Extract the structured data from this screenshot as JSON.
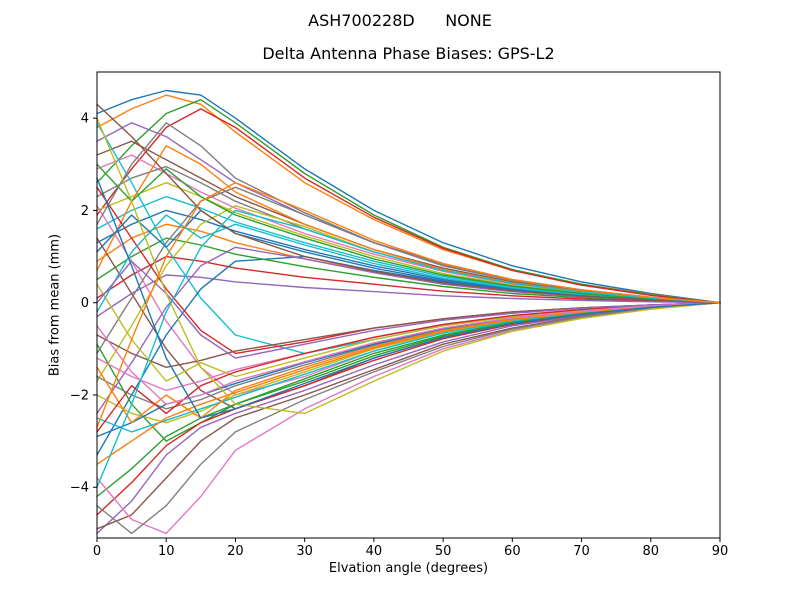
{
  "page": {
    "background": "#ffffff"
  },
  "chart_data": {
    "type": "line",
    "suptitle": "ASH700228D      NONE",
    "title": "Delta Antenna Phase Biases: GPS-L2",
    "xlabel": "Elvation angle (degrees)",
    "ylabel": "Bias from mean (mm)",
    "xlim": [
      0,
      90
    ],
    "ylim": [
      -5.1,
      5.0
    ],
    "xticks": [
      0,
      10,
      20,
      30,
      40,
      50,
      60,
      70,
      80,
      90
    ],
    "xticklabels": [
      "0",
      "10",
      "20",
      "30",
      "40",
      "50",
      "60",
      "70",
      "80",
      "90"
    ],
    "yticks": [
      -4,
      -2,
      0,
      2,
      4
    ],
    "yticklabels": [
      "−4",
      "−2",
      "0",
      "2",
      "4"
    ],
    "grid": false,
    "legend": false,
    "palette": [
      "#1f77b4",
      "#ff7f0e",
      "#2ca02c",
      "#d62728",
      "#9467bd",
      "#8c564b",
      "#e377c2",
      "#7f7f7f",
      "#bcbd22",
      "#17becf"
    ],
    "x": [
      0,
      5,
      10,
      15,
      20,
      30,
      40,
      50,
      60,
      70,
      80,
      90
    ],
    "series": [
      {
        "values": [
          4.1,
          4.4,
          4.6,
          4.5,
          4.0,
          2.9,
          2.0,
          1.3,
          0.8,
          0.45,
          0.2,
          0
        ]
      },
      {
        "values": [
          3.8,
          4.2,
          4.5,
          4.3,
          3.7,
          2.6,
          1.8,
          1.15,
          0.7,
          0.4,
          0.18,
          0
        ]
      },
      {
        "values": [
          2.6,
          3.4,
          4.1,
          4.4,
          3.9,
          2.8,
          1.9,
          1.2,
          0.72,
          0.4,
          0.17,
          0
        ]
      },
      {
        "values": [
          1.9,
          2.9,
          3.8,
          4.2,
          3.8,
          2.7,
          1.85,
          1.18,
          0.7,
          0.38,
          0.16,
          0
        ]
      },
      {
        "values": [
          3.5,
          3.9,
          3.6,
          3.1,
          2.6,
          1.9,
          1.3,
          0.85,
          0.5,
          0.28,
          0.12,
          0
        ]
      },
      {
        "values": [
          3.2,
          3.5,
          3.1,
          2.7,
          2.3,
          1.7,
          1.15,
          0.75,
          0.45,
          0.25,
          0.1,
          0
        ]
      },
      {
        "values": [
          2.9,
          3.2,
          2.8,
          2.4,
          2.05,
          1.5,
          1.05,
          0.68,
          0.4,
          0.22,
          0.1,
          0
        ]
      },
      {
        "values": [
          2.3,
          2.7,
          2.95,
          2.6,
          2.2,
          1.6,
          1.1,
          0.7,
          0.42,
          0.23,
          0.1,
          0
        ]
      },
      {
        "values": [
          2.0,
          2.3,
          2.6,
          2.3,
          1.95,
          1.45,
          1.0,
          0.63,
          0.38,
          0.2,
          0.09,
          0
        ]
      },
      {
        "values": [
          1.6,
          2.0,
          2.3,
          2.05,
          1.75,
          1.3,
          0.9,
          0.57,
          0.34,
          0.18,
          0.08,
          0
        ]
      },
      {
        "values": [
          1.3,
          1.7,
          2.0,
          1.8,
          1.55,
          1.15,
          0.8,
          0.5,
          0.3,
          0.16,
          0.07,
          0
        ]
      },
      {
        "values": [
          0.9,
          1.4,
          1.7,
          1.55,
          1.3,
          0.95,
          0.67,
          0.42,
          0.25,
          0.13,
          0.06,
          0
        ]
      },
      {
        "values": [
          0.5,
          1.0,
          1.4,
          1.25,
          1.05,
          0.78,
          0.55,
          0.35,
          0.2,
          0.11,
          0.05,
          0
        ]
      },
      {
        "values": [
          0.1,
          0.6,
          1.0,
          0.9,
          0.75,
          0.55,
          0.4,
          0.25,
          0.15,
          0.08,
          0.03,
          0
        ]
      },
      {
        "values": [
          -0.3,
          0.2,
          0.6,
          0.55,
          0.45,
          0.33,
          0.24,
          0.15,
          0.09,
          0.05,
          0.02,
          0
        ]
      },
      {
        "values": [
          1.4,
          0.2,
          -1.0,
          -1.9,
          -2.3,
          -1.8,
          -1.2,
          -0.75,
          -0.45,
          -0.25,
          -0.1,
          0
        ]
      },
      {
        "values": [
          2.1,
          0.9,
          -0.4,
          -1.4,
          -2.0,
          -1.6,
          -1.05,
          -0.65,
          -0.4,
          -0.22,
          -0.09,
          0
        ]
      },
      {
        "values": [
          -1.1,
          0.1,
          1.3,
          2.2,
          2.5,
          1.9,
          1.3,
          0.8,
          0.48,
          0.26,
          0.11,
          0
        ]
      },
      {
        "values": [
          -1.7,
          -0.5,
          0.8,
          1.7,
          2.1,
          1.65,
          1.1,
          0.7,
          0.42,
          0.23,
          0.1,
          0
        ]
      },
      {
        "values": [
          3.9,
          2.6,
          1.2,
          0.1,
          -0.7,
          -1.1,
          -0.8,
          -0.5,
          -0.3,
          -0.16,
          -0.07,
          0
        ]
      },
      {
        "values": [
          -3.3,
          -2.0,
          -0.7,
          0.3,
          0.9,
          1.0,
          0.7,
          0.45,
          0.27,
          0.15,
          0.06,
          0
        ]
      },
      {
        "values": [
          0.7,
          2.2,
          3.4,
          3.0,
          2.4,
          1.7,
          1.15,
          0.72,
          0.43,
          0.24,
          0.1,
          0
        ]
      },
      {
        "values": [
          -0.9,
          -2.2,
          -3.0,
          -2.6,
          -2.2,
          -1.65,
          -1.1,
          -0.7,
          -0.42,
          -0.23,
          -0.1,
          0
        ]
      },
      {
        "values": [
          2.5,
          1.4,
          0.3,
          -0.6,
          -1.1,
          -0.85,
          -0.55,
          -0.35,
          -0.2,
          -0.11,
          -0.05,
          0
        ]
      },
      {
        "values": [
          -2.4,
          -1.3,
          -0.1,
          0.8,
          1.2,
          0.95,
          0.65,
          0.4,
          0.24,
          0.13,
          0.06,
          0
        ]
      },
      {
        "values": [
          -0.7,
          -1.1,
          -1.4,
          -1.25,
          -1.05,
          -0.8,
          -0.55,
          -0.35,
          -0.2,
          -0.11,
          -0.05,
          0
        ]
      },
      {
        "values": [
          -1.2,
          -1.6,
          -1.9,
          -1.7,
          -1.45,
          -1.1,
          -0.75,
          -0.47,
          -0.28,
          -0.15,
          -0.06,
          0
        ]
      },
      {
        "values": [
          -1.6,
          -2.0,
          -2.3,
          -2.1,
          -1.8,
          -1.35,
          -0.92,
          -0.58,
          -0.35,
          -0.19,
          -0.08,
          0
        ]
      },
      {
        "values": [
          -2.0,
          -2.4,
          -2.6,
          -2.35,
          -2.0,
          -1.5,
          -1.0,
          -0.64,
          -0.38,
          -0.2,
          -0.09,
          0
        ]
      },
      {
        "values": [
          -2.5,
          -2.8,
          -2.55,
          -2.3,
          -2.05,
          -1.55,
          -1.05,
          -0.66,
          -0.4,
          -0.22,
          -0.09,
          0
        ]
      },
      {
        "values": [
          -2.9,
          -2.6,
          -2.2,
          -2.0,
          -1.75,
          -1.3,
          -0.9,
          -0.56,
          -0.34,
          -0.18,
          -0.08,
          0
        ]
      },
      {
        "values": [
          -3.5,
          -3.0,
          -2.5,
          -2.2,
          -1.95,
          -1.45,
          -0.98,
          -0.62,
          -0.37,
          -0.2,
          -0.09,
          0
        ]
      },
      {
        "values": [
          -4.2,
          -3.6,
          -2.9,
          -2.5,
          -2.2,
          -1.7,
          -1.15,
          -0.72,
          -0.43,
          -0.24,
          -0.1,
          0
        ]
      },
      {
        "values": [
          -4.6,
          -3.9,
          -3.1,
          -2.6,
          -2.3,
          -1.8,
          -1.25,
          -0.78,
          -0.47,
          -0.26,
          -0.11,
          0
        ]
      },
      {
        "values": [
          -5.0,
          -4.3,
          -3.3,
          -2.7,
          -2.4,
          -1.9,
          -1.35,
          -0.85,
          -0.5,
          -0.28,
          -0.12,
          0
        ]
      },
      {
        "values": [
          -4.9,
          -4.6,
          -3.8,
          -3.0,
          -2.5,
          -2.0,
          -1.45,
          -0.9,
          -0.55,
          -0.3,
          -0.13,
          0
        ]
      },
      {
        "values": [
          -3.8,
          -4.7,
          -5.0,
          -4.2,
          -3.2,
          -2.3,
          -1.6,
          -1.0,
          -0.6,
          -0.33,
          -0.14,
          0
        ]
      },
      {
        "values": [
          -4.4,
          -5.0,
          -4.4,
          -3.5,
          -2.8,
          -2.1,
          -1.5,
          -0.95,
          -0.57,
          -0.31,
          -0.13,
          0
        ]
      },
      {
        "values": [
          0.4,
          -0.8,
          -1.7,
          -1.3,
          -1.6,
          -1.2,
          -0.8,
          -0.5,
          -0.3,
          -0.17,
          -0.07,
          0
        ]
      },
      {
        "values": [
          -0.2,
          1.1,
          1.9,
          1.4,
          1.7,
          1.25,
          0.85,
          0.53,
          0.32,
          0.17,
          0.07,
          0
        ]
      },
      {
        "values": [
          1.1,
          1.9,
          1.2,
          2.0,
          1.5,
          1.1,
          0.75,
          0.47,
          0.28,
          0.15,
          0.06,
          0
        ]
      },
      {
        "values": [
          -1.4,
          -2.6,
          -2.0,
          -2.5,
          -1.9,
          -1.4,
          -0.95,
          -0.6,
          -0.36,
          -0.2,
          -0.08,
          0
        ]
      },
      {
        "values": [
          3.0,
          2.2,
          2.9,
          2.3,
          1.9,
          1.4,
          0.95,
          0.6,
          0.36,
          0.2,
          0.08,
          0
        ]
      },
      {
        "values": [
          -2.8,
          -1.8,
          -2.4,
          -1.8,
          -1.5,
          -1.1,
          -0.75,
          -0.47,
          -0.28,
          -0.15,
          -0.06,
          0
        ]
      },
      {
        "values": [
          0.0,
          0.9,
          0.2,
          -0.7,
          -1.2,
          -0.9,
          -0.6,
          -0.38,
          -0.23,
          -0.12,
          -0.05,
          0
        ]
      },
      {
        "values": [
          4.3,
          3.6,
          2.8,
          2.0,
          1.5,
          1.0,
          0.68,
          0.43,
          0.26,
          0.14,
          0.06,
          0
        ]
      },
      {
        "values": [
          -0.5,
          -1.5,
          -2.2,
          -2.0,
          -1.7,
          -1.28,
          -0.87,
          -0.55,
          -0.33,
          -0.18,
          -0.07,
          0
        ]
      },
      {
        "values": [
          1.7,
          3.0,
          3.9,
          3.4,
          2.7,
          1.95,
          1.3,
          0.82,
          0.49,
          0.27,
          0.11,
          0
        ]
      },
      {
        "values": [
          4.0,
          2.2,
          0.2,
          -1.4,
          -2.2,
          -2.4,
          -1.7,
          -1.05,
          -0.62,
          -0.34,
          -0.14,
          0
        ]
      },
      {
        "values": [
          -4.0,
          -2.2,
          -0.2,
          1.2,
          2.0,
          1.6,
          1.1,
          0.7,
          0.42,
          0.23,
          0.1,
          0
        ]
      },
      {
        "values": [
          2.7,
          0.8,
          -1.2,
          -2.5,
          -2.3,
          -1.75,
          -1.2,
          -0.75,
          -0.45,
          -0.25,
          -0.1,
          0
        ]
      },
      {
        "values": [
          -2.7,
          -0.8,
          1.0,
          2.2,
          2.6,
          2.0,
          1.35,
          0.85,
          0.5,
          0.28,
          0.12,
          0
        ]
      }
    ]
  }
}
